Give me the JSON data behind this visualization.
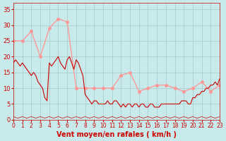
{
  "bg_color": "#c8eaea",
  "grid_color": "#a8c8c8",
  "line_avg_color": "#cc0000",
  "line_gust_color": "#ff9999",
  "line_dir_color": "#cc0000",
  "xlabel": "Vent moyen/en rafales ( km/h )",
  "tick_color": "#cc0000",
  "ylim": [
    0,
    37
  ],
  "xlim": [
    0,
    23
  ],
  "yticks": [
    0,
    5,
    10,
    15,
    20,
    25,
    30,
    35
  ],
  "avg_x": [
    0,
    0.25,
    0.5,
    0.75,
    1,
    1.25,
    1.5,
    1.75,
    2,
    2.25,
    2.5,
    2.75,
    3,
    3.25,
    3.5,
    3.75,
    4,
    4.25,
    4.5,
    4.75,
    5,
    5.25,
    5.5,
    5.75,
    6,
    6.25,
    6.5,
    6.75,
    7,
    7.25,
    7.5,
    7.75,
    8,
    8.25,
    8.5,
    8.75,
    9,
    9.25,
    9.5,
    9.75,
    10,
    10.25,
    10.5,
    10.75,
    11,
    11.25,
    11.5,
    11.75,
    12,
    12.25,
    12.5,
    12.75,
    13,
    13.25,
    13.5,
    13.75,
    14,
    14.25,
    14.5,
    14.75,
    15,
    15.25,
    15.5,
    15.75,
    16,
    16.25,
    16.5,
    16.75,
    17,
    17.25,
    17.5,
    17.75,
    18,
    18.25,
    18.5,
    18.75,
    19,
    19.25,
    19.5,
    19.75,
    20,
    20.25,
    20.5,
    20.75,
    21,
    21.25,
    21.5,
    21.75,
    22,
    22.25,
    22.5,
    22.75,
    23
  ],
  "avg_y": [
    18,
    19,
    18,
    17,
    18,
    17,
    16,
    15,
    14,
    15,
    14,
    12,
    11,
    10,
    7,
    6,
    18,
    17,
    18,
    19,
    20,
    18,
    17,
    16,
    19,
    20,
    18,
    16,
    19,
    18,
    16,
    14,
    8,
    7,
    6,
    5,
    6,
    6,
    5,
    5,
    5,
    5,
    6,
    5,
    5,
    6,
    6,
    5,
    4,
    5,
    4,
    5,
    5,
    4,
    5,
    5,
    4,
    5,
    5,
    4,
    4,
    5,
    5,
    4,
    4,
    4,
    5,
    5,
    5,
    5,
    5,
    5,
    5,
    5,
    5,
    6,
    6,
    6,
    5,
    5,
    7,
    7,
    8,
    8,
    9,
    9,
    10,
    10,
    11,
    11,
    12,
    11,
    13
  ],
  "gust_x": [
    0,
    1,
    2,
    3,
    4,
    5,
    6,
    7,
    8,
    9,
    10,
    11,
    12,
    13,
    14,
    15,
    16,
    17,
    18,
    19,
    20,
    21,
    22,
    23
  ],
  "gust_y": [
    25,
    25,
    28,
    20,
    29,
    32,
    31,
    10,
    10,
    10,
    10,
    10,
    14,
    15,
    9,
    10,
    11,
    11,
    10,
    9,
    10,
    12,
    9,
    11
  ],
  "dir_x": [
    0,
    0.5,
    1,
    1.5,
    2,
    2.5,
    3,
    3.5,
    4,
    4.5,
    5,
    5.5,
    6,
    6.5,
    7,
    7.5,
    8,
    8.5,
    9,
    9.5,
    10,
    10.5,
    11,
    11.5,
    12,
    12.5,
    13,
    13.5,
    14,
    14.5,
    15,
    15.5,
    16,
    16.5,
    17,
    17.5,
    18,
    18.5,
    19,
    19.5,
    20,
    20.5,
    21,
    21.5,
    22,
    22.5,
    23
  ],
  "dir_y": [
    1,
    0.5,
    1,
    0.5,
    1,
    0.5,
    1,
    0.5,
    1,
    0.5,
    1,
    0.5,
    1,
    0.5,
    1,
    0.5,
    1,
    0.5,
    1,
    0.5,
    1,
    0.5,
    1,
    0.5,
    1,
    0.5,
    1,
    0.5,
    1,
    0.5,
    1,
    0.5,
    1,
    0.5,
    1,
    0.5,
    1,
    0.5,
    1,
    0.5,
    1,
    0.5,
    1,
    0.5,
    1,
    0.5,
    1
  ]
}
